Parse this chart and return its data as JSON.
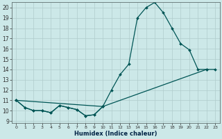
{
  "xlabel": "Humidex (Indice chaleur)",
  "bg_color": "#cce8e8",
  "grid_color": "#b0cccc",
  "line_color": "#005555",
  "xlim": [
    -0.5,
    23.5
  ],
  "ylim": [
    8.8,
    20.5
  ],
  "xticks": [
    0,
    1,
    2,
    3,
    4,
    5,
    6,
    7,
    8,
    9,
    10,
    11,
    12,
    13,
    14,
    15,
    16,
    17,
    18,
    19,
    20,
    21,
    22,
    23
  ],
  "yticks": [
    9,
    10,
    11,
    12,
    13,
    14,
    15,
    16,
    17,
    18,
    19,
    20
  ],
  "line1_x": [
    0,
    1,
    2,
    3,
    4,
    5,
    6,
    7,
    8,
    9,
    10,
    11,
    12,
    13,
    14,
    15,
    16,
    17,
    18,
    19,
    20,
    21,
    22
  ],
  "line1_y": [
    11,
    10.3,
    10.0,
    10.0,
    9.8,
    10.5,
    10.3,
    10.1,
    9.5,
    9.6,
    10.4,
    12.0,
    13.5,
    14.5,
    19.0,
    20.0,
    20.5,
    19.5,
    18.0,
    16.5,
    15.9,
    14.0,
    14.0
  ],
  "line2_x": [
    0,
    1,
    2,
    3,
    4,
    5,
    6,
    7,
    8,
    9,
    10
  ],
  "line2_y": [
    11,
    10.3,
    10.0,
    10.0,
    9.8,
    10.5,
    10.3,
    10.1,
    9.5,
    9.6,
    10.4
  ],
  "line3_x": [
    0,
    10,
    22,
    23
  ],
  "line3_y": [
    11,
    10.4,
    14.0,
    14.0
  ],
  "marker_size": 2.0,
  "linewidth": 0.9,
  "tick_labelsize": 5.5,
  "xlabel_fontsize": 6.0
}
